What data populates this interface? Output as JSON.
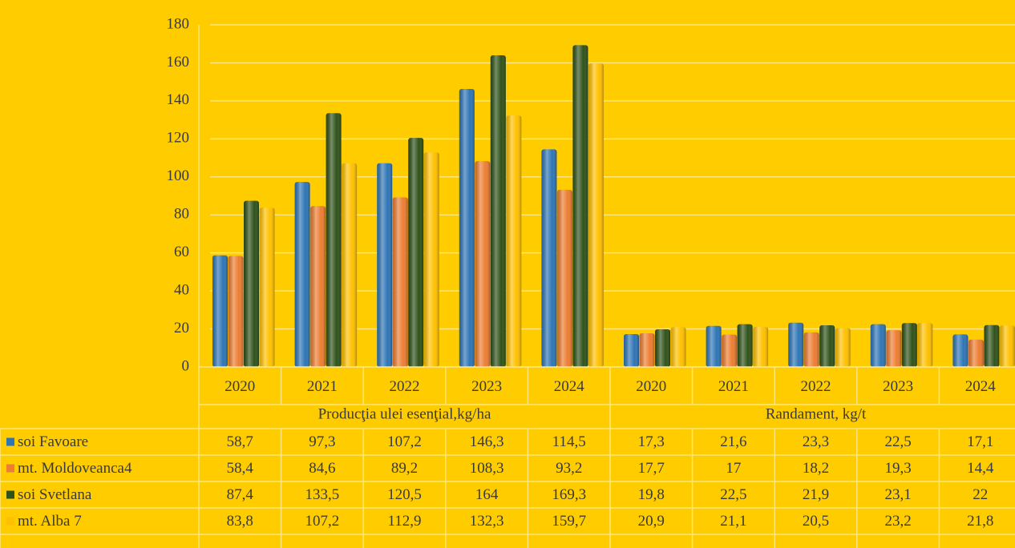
{
  "chart_data": {
    "type": "bar",
    "groups": [
      {
        "label": "Producţia ulei esenţial,kg/ha",
        "categories": [
          "2020",
          "2021",
          "2022",
          "2023",
          "2024"
        ]
      },
      {
        "label": "Randament, kg/t",
        "categories": [
          "2020",
          "2021",
          "2022",
          "2023",
          "2024"
        ]
      }
    ],
    "series": [
      {
        "name": "soi Favoare",
        "color": "#2e75b6",
        "values": [
          58.7,
          97.3,
          107.2,
          146.3,
          114.5,
          17.3,
          21.6,
          23.3,
          22.5,
          17.1
        ],
        "value_labels": [
          "58,7",
          "97,3",
          "107,2",
          "146,3",
          "114,5",
          "17,3",
          "21,6",
          "23,3",
          "22,5",
          "17,1"
        ]
      },
      {
        "name": "mt. Moldoveanca4",
        "color": "#ed7d31",
        "values": [
          58.4,
          84.6,
          89.2,
          108.3,
          93.2,
          17.7,
          17,
          18.2,
          19.3,
          14.4
        ],
        "value_labels": [
          "58,4",
          "84,6",
          "89,2",
          "108,3",
          "93,2",
          "17,7",
          "17",
          "18,2",
          "19,3",
          "14,4"
        ]
      },
      {
        "name": "soi Svetlana",
        "color": "#2f5219",
        "values": [
          87.4,
          133.5,
          120.5,
          164,
          169.3,
          19.8,
          22.5,
          21.9,
          23.1,
          22
        ],
        "value_labels": [
          "87,4",
          "133,5",
          "120,5",
          "164",
          "169,3",
          "19,8",
          "22,5",
          "21,9",
          "23,1",
          "22"
        ]
      },
      {
        "name": "mt. Alba 7",
        "color": "#ffc000",
        "values": [
          83.8,
          107.2,
          112.9,
          132.3,
          159.7,
          20.9,
          21.1,
          20.5,
          23.2,
          21.8
        ],
        "value_labels": [
          "83,8",
          "107,2",
          "112,9",
          "132,3",
          "159,7",
          "20,9",
          "21,1",
          "20,5",
          "23,2",
          "21,8"
        ]
      }
    ],
    "ylim": [
      0,
      180
    ],
    "yticks": [
      0,
      20,
      40,
      60,
      80,
      100,
      120,
      140,
      160,
      180
    ],
    "grid": true
  }
}
